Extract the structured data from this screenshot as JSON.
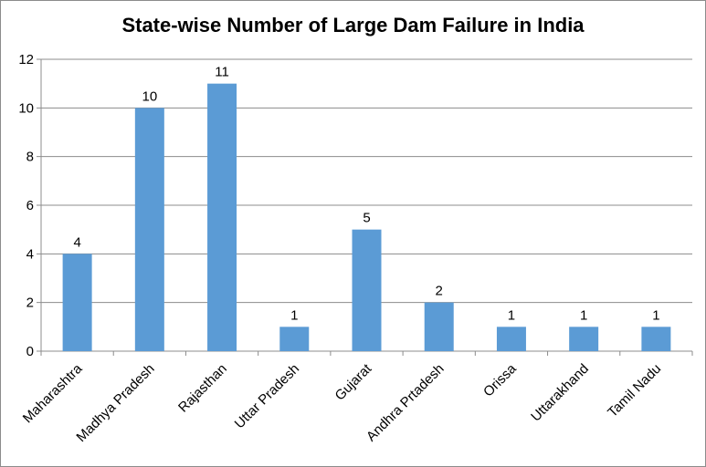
{
  "chart_data": {
    "type": "bar",
    "title": "State-wise Number of Large Dam Failure in India",
    "categories": [
      "Maharashtra",
      "Madhya Pradesh",
      "Rajasthan",
      "Uttar Pradesh",
      "Gujarat",
      "Andhra Prtadesh",
      "Orissa",
      "Uttarakhand",
      "Tamil Nadu"
    ],
    "values": [
      4,
      10,
      11,
      1,
      5,
      2,
      1,
      1,
      1
    ],
    "ylim": [
      0,
      12
    ],
    "yticks": [
      "0",
      "2",
      "4",
      "6",
      "8",
      "10",
      "12"
    ],
    "grid": true,
    "data_labels": true,
    "bar_color": "#5b9bd5",
    "grid_color": "#8c8c8c"
  }
}
